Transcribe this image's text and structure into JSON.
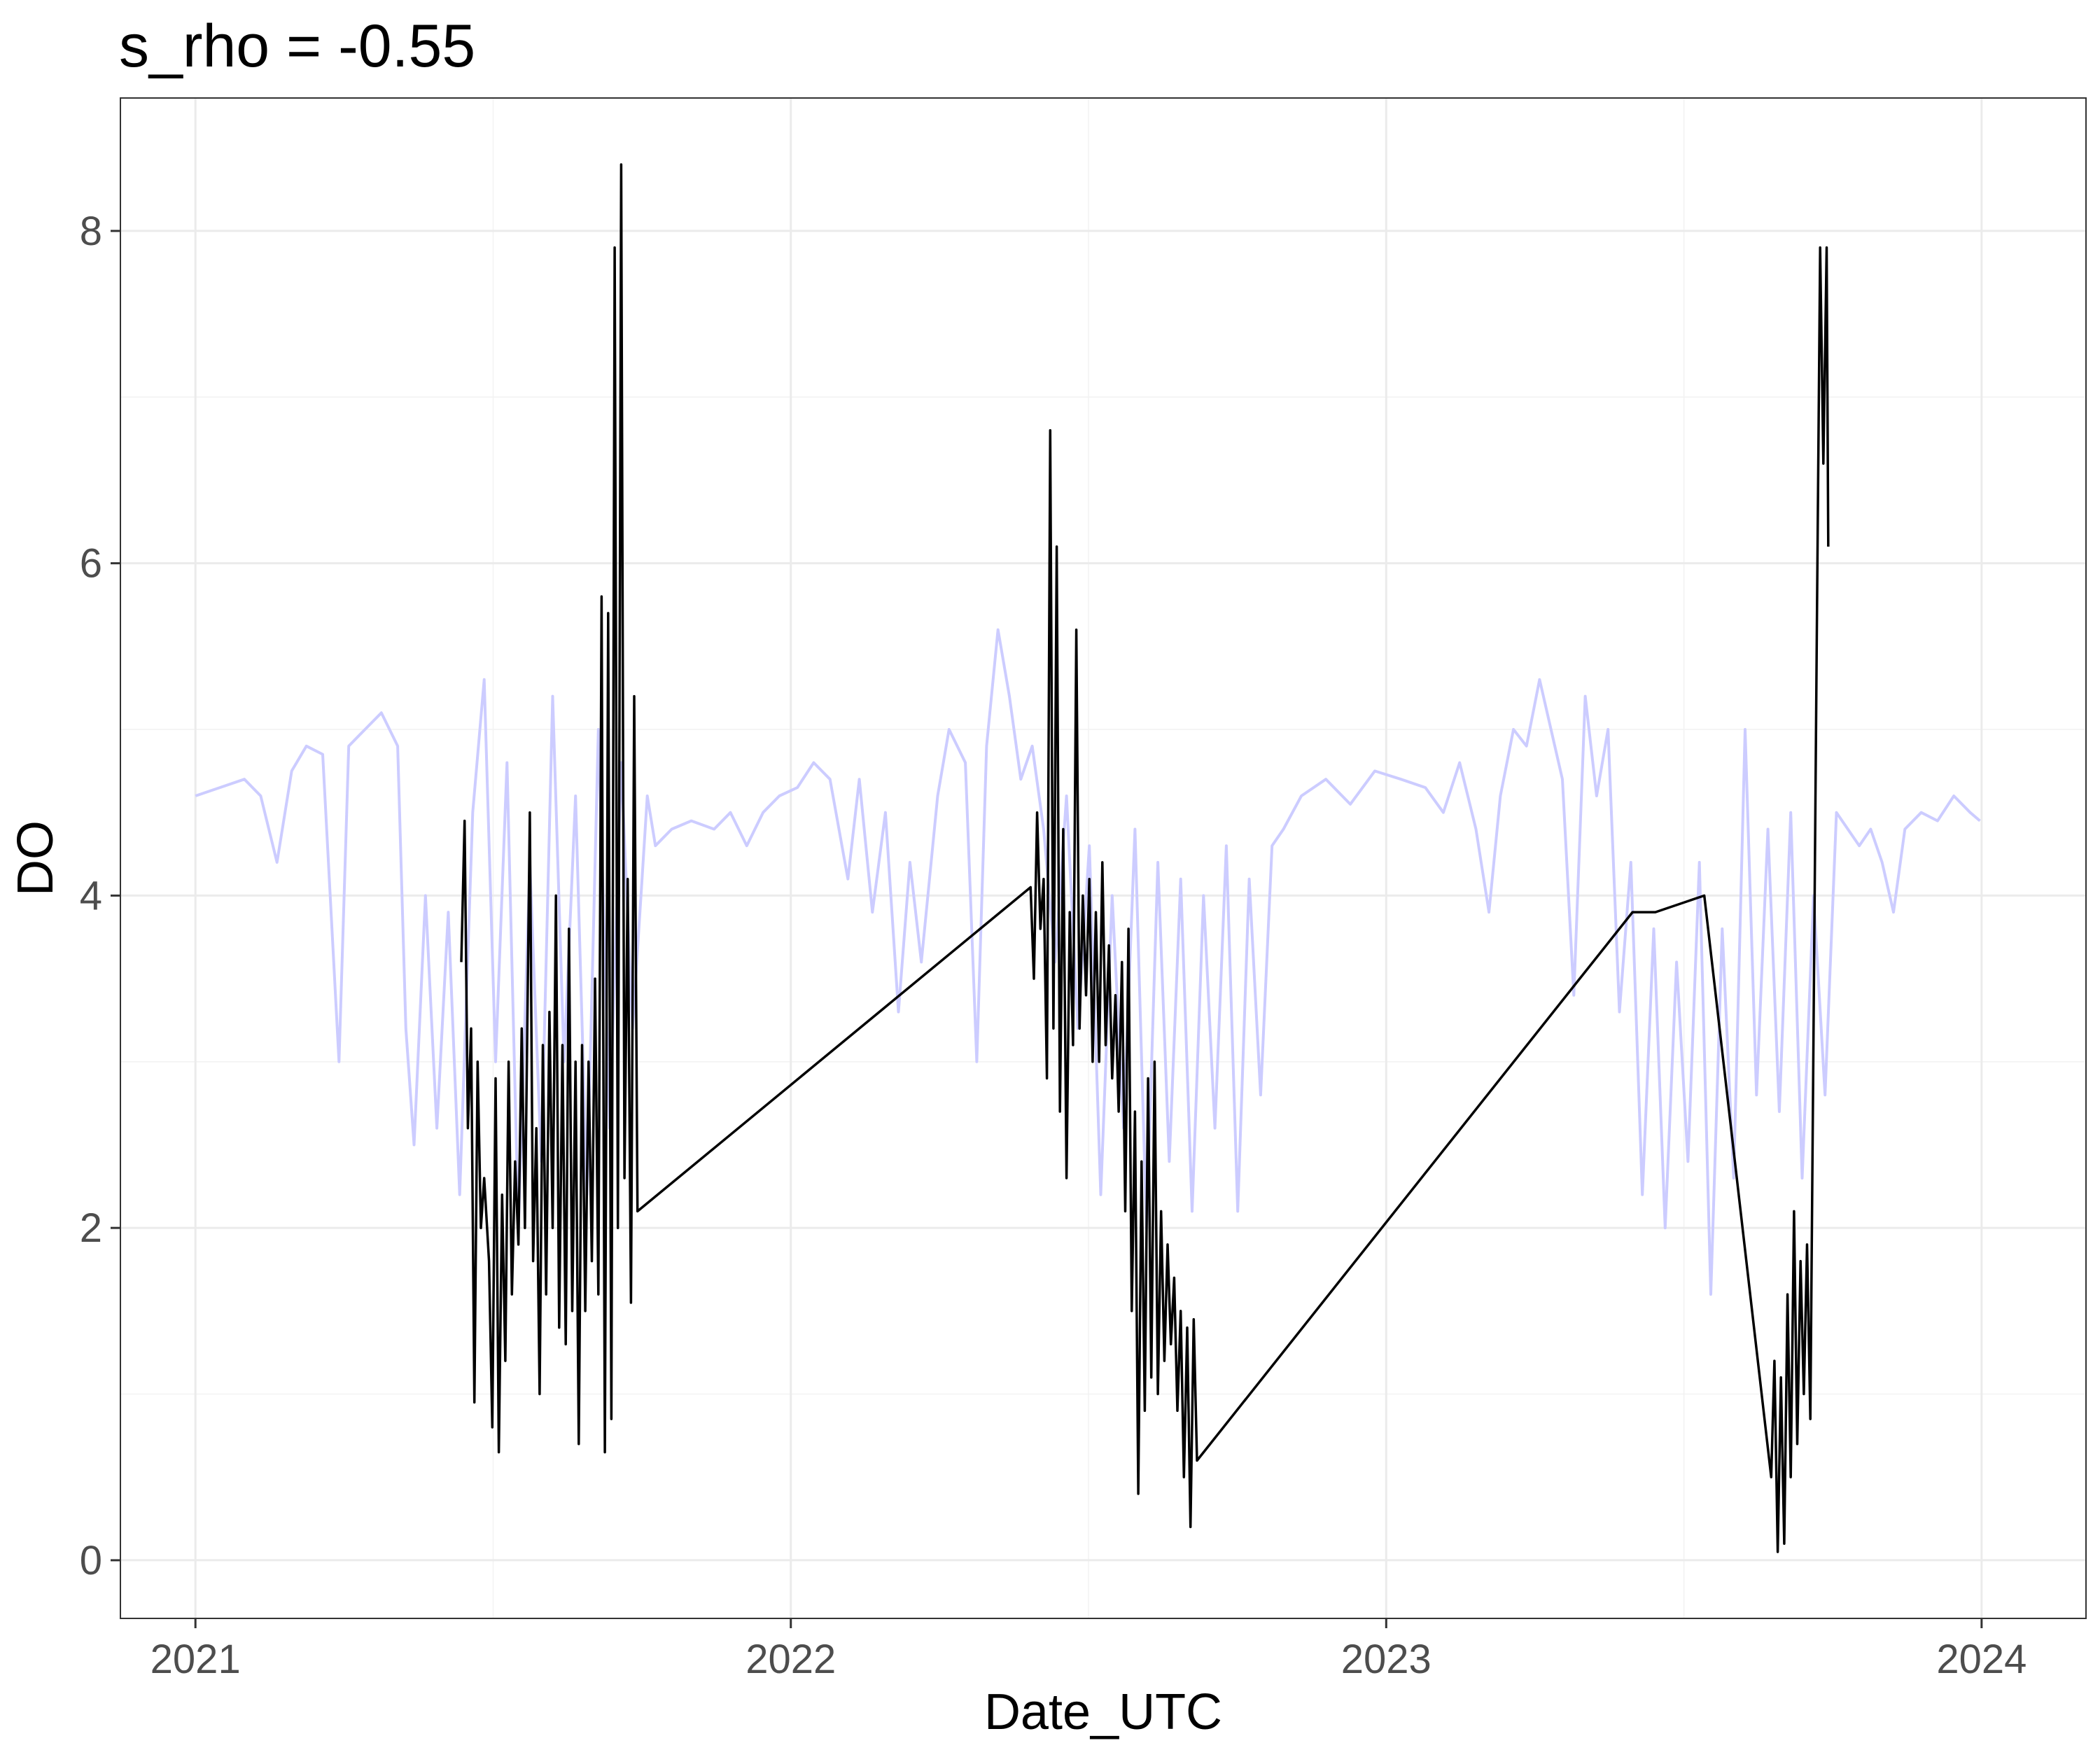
{
  "chart_data": {
    "type": "line",
    "title": "s_rho = -0.55",
    "xlabel": "Date_UTC",
    "ylabel": "DO",
    "xlim": [
      "2020-11-16",
      "2024-03-05"
    ],
    "ylim": [
      -0.35,
      8.8
    ],
    "x_ticks": [
      "2021-01-01",
      "2022-01-01",
      "2023-01-01",
      "2024-01-01"
    ],
    "x_tick_labels": [
      "2021",
      "2022",
      "2023",
      "2024"
    ],
    "y_ticks": [
      0,
      2,
      4,
      6,
      8
    ],
    "y_tick_labels": [
      "0",
      "2",
      "4",
      "6",
      "8"
    ],
    "grid": true,
    "legend": "none",
    "series": [
      {
        "color": "#ccccff",
        "points": [
          [
            "2021-01-01",
            4.6
          ],
          [
            "2021-01-16",
            4.65
          ],
          [
            "2021-01-31",
            4.7
          ],
          [
            "2021-02-10",
            4.6
          ],
          [
            "2021-02-20",
            4.2
          ],
          [
            "2021-03-01",
            4.75
          ],
          [
            "2021-03-10",
            4.9
          ],
          [
            "2021-03-20",
            4.85
          ],
          [
            "2021-03-30",
            3.0
          ],
          [
            "2021-04-05",
            4.9
          ],
          [
            "2021-04-15",
            5.0
          ],
          [
            "2021-04-25",
            5.1
          ],
          [
            "2021-05-05",
            4.9
          ],
          [
            "2021-05-10",
            3.2
          ],
          [
            "2021-05-15",
            2.5
          ],
          [
            "2021-05-22",
            4.0
          ],
          [
            "2021-05-29",
            2.6
          ],
          [
            "2021-06-05",
            3.9
          ],
          [
            "2021-06-12",
            2.2
          ],
          [
            "2021-06-20",
            4.5
          ],
          [
            "2021-06-27",
            5.3
          ],
          [
            "2021-07-04",
            3.0
          ],
          [
            "2021-07-11",
            4.8
          ],
          [
            "2021-07-18",
            2.0
          ],
          [
            "2021-07-25",
            4.2
          ],
          [
            "2021-08-01",
            2.4
          ],
          [
            "2021-08-08",
            5.2
          ],
          [
            "2021-08-15",
            3.0
          ],
          [
            "2021-08-22",
            4.6
          ],
          [
            "2021-08-29",
            2.2
          ],
          [
            "2021-09-05",
            5.0
          ],
          [
            "2021-09-12",
            2.6
          ],
          [
            "2021-09-19",
            4.8
          ],
          [
            "2021-09-26",
            3.2
          ],
          [
            "2021-10-05",
            4.6
          ],
          [
            "2021-10-10",
            4.3
          ],
          [
            "2021-10-20",
            4.4
          ],
          [
            "2021-11-01",
            4.45
          ],
          [
            "2021-11-15",
            4.4
          ],
          [
            "2021-11-25",
            4.5
          ],
          [
            "2021-12-05",
            4.3
          ],
          [
            "2021-12-15",
            4.5
          ],
          [
            "2021-12-25",
            4.6
          ],
          [
            "2022-01-05",
            4.65
          ],
          [
            "2022-01-15",
            4.8
          ],
          [
            "2022-01-25",
            4.7
          ],
          [
            "2022-02-05",
            4.1
          ],
          [
            "2022-02-12",
            4.7
          ],
          [
            "2022-02-20",
            3.9
          ],
          [
            "2022-02-28",
            4.5
          ],
          [
            "2022-03-08",
            3.3
          ],
          [
            "2022-03-15",
            4.2
          ],
          [
            "2022-03-22",
            3.6
          ],
          [
            "2022-04-01",
            4.6
          ],
          [
            "2022-04-08",
            5.0
          ],
          [
            "2022-04-18",
            4.8
          ],
          [
            "2022-04-25",
            3.0
          ],
          [
            "2022-05-01",
            4.9
          ],
          [
            "2022-05-08",
            5.6
          ],
          [
            "2022-05-15",
            5.2
          ],
          [
            "2022-05-22",
            4.7
          ],
          [
            "2022-05-29",
            4.9
          ],
          [
            "2022-06-05",
            4.4
          ],
          [
            "2022-06-12",
            3.6
          ],
          [
            "2022-06-19",
            4.6
          ],
          [
            "2022-06-26",
            3.2
          ],
          [
            "2022-07-03",
            4.3
          ],
          [
            "2022-07-10",
            2.2
          ],
          [
            "2022-07-17",
            4.0
          ],
          [
            "2022-07-24",
            2.6
          ],
          [
            "2022-07-31",
            4.4
          ],
          [
            "2022-08-07",
            2.0
          ],
          [
            "2022-08-14",
            4.2
          ],
          [
            "2022-08-21",
            2.4
          ],
          [
            "2022-08-28",
            4.1
          ],
          [
            "2022-09-04",
            2.1
          ],
          [
            "2022-09-11",
            4.0
          ],
          [
            "2022-09-18",
            2.6
          ],
          [
            "2022-09-25",
            4.3
          ],
          [
            "2022-10-02",
            2.1
          ],
          [
            "2022-10-09",
            4.1
          ],
          [
            "2022-10-16",
            2.8
          ],
          [
            "2022-10-23",
            4.3
          ],
          [
            "2022-10-30",
            4.4
          ],
          [
            "2022-11-10",
            4.6
          ],
          [
            "2022-11-25",
            4.7
          ],
          [
            "2022-12-10",
            4.55
          ],
          [
            "2022-12-25",
            4.75
          ],
          [
            "2023-01-10",
            4.7
          ],
          [
            "2023-01-25",
            4.65
          ],
          [
            "2023-02-05",
            4.5
          ],
          [
            "2023-02-15",
            4.8
          ],
          [
            "2023-02-25",
            4.4
          ],
          [
            "2023-03-05",
            3.9
          ],
          [
            "2023-03-12",
            4.6
          ],
          [
            "2023-03-20",
            5.0
          ],
          [
            "2023-03-28",
            4.9
          ],
          [
            "2023-04-05",
            5.3
          ],
          [
            "2023-04-12",
            5.0
          ],
          [
            "2023-04-19",
            4.7
          ],
          [
            "2023-04-26",
            3.4
          ],
          [
            "2023-05-03",
            5.2
          ],
          [
            "2023-05-10",
            4.6
          ],
          [
            "2023-05-17",
            5.0
          ],
          [
            "2023-05-24",
            3.3
          ],
          [
            "2023-05-31",
            4.2
          ],
          [
            "2023-06-07",
            2.2
          ],
          [
            "2023-06-14",
            3.8
          ],
          [
            "2023-06-21",
            2.0
          ],
          [
            "2023-06-28",
            3.6
          ],
          [
            "2023-07-05",
            2.4
          ],
          [
            "2023-07-12",
            4.2
          ],
          [
            "2023-07-19",
            1.6
          ],
          [
            "2023-07-26",
            3.8
          ],
          [
            "2023-08-02",
            2.3
          ],
          [
            "2023-08-09",
            5.0
          ],
          [
            "2023-08-16",
            2.8
          ],
          [
            "2023-08-23",
            4.4
          ],
          [
            "2023-08-30",
            2.7
          ],
          [
            "2023-09-06",
            4.5
          ],
          [
            "2023-09-13",
            2.3
          ],
          [
            "2023-09-20",
            4.0
          ],
          [
            "2023-09-27",
            2.8
          ],
          [
            "2023-10-04",
            4.5
          ],
          [
            "2023-10-11",
            4.4
          ],
          [
            "2023-10-18",
            4.3
          ],
          [
            "2023-10-25",
            4.4
          ],
          [
            "2023-11-01",
            4.2
          ],
          [
            "2023-11-08",
            3.9
          ],
          [
            "2023-11-15",
            4.4
          ],
          [
            "2023-11-25",
            4.5
          ],
          [
            "2023-12-05",
            4.45
          ],
          [
            "2023-12-15",
            4.6
          ],
          [
            "2023-12-25",
            4.5
          ],
          [
            "2023-12-31",
            4.45
          ]
        ]
      },
      {
        "color": "#000000",
        "points": [
          [
            "2021-06-13",
            3.6
          ],
          [
            "2021-06-15",
            4.45
          ],
          [
            "2021-06-17",
            2.6
          ],
          [
            "2021-06-19",
            3.2
          ],
          [
            "2021-06-21",
            0.95
          ],
          [
            "2021-06-23",
            3.0
          ],
          [
            "2021-06-25",
            2.0
          ],
          [
            "2021-06-27",
            2.3
          ],
          [
            "2021-06-30",
            1.8
          ],
          [
            "2021-07-02",
            0.8
          ],
          [
            "2021-07-04",
            2.9
          ],
          [
            "2021-07-06",
            0.65
          ],
          [
            "2021-07-08",
            2.2
          ],
          [
            "2021-07-10",
            1.2
          ],
          [
            "2021-07-12",
            3.0
          ],
          [
            "2021-07-14",
            1.6
          ],
          [
            "2021-07-16",
            2.4
          ],
          [
            "2021-07-18",
            1.9
          ],
          [
            "2021-07-20",
            3.2
          ],
          [
            "2021-07-22",
            2.0
          ],
          [
            "2021-07-25",
            4.5
          ],
          [
            "2021-07-27",
            1.8
          ],
          [
            "2021-07-29",
            2.6
          ],
          [
            "2021-07-31",
            1.0
          ],
          [
            "2021-08-02",
            3.1
          ],
          [
            "2021-08-04",
            1.6
          ],
          [
            "2021-08-06",
            3.3
          ],
          [
            "2021-08-08",
            2.0
          ],
          [
            "2021-08-10",
            4.0
          ],
          [
            "2021-08-12",
            1.4
          ],
          [
            "2021-08-14",
            3.1
          ],
          [
            "2021-08-16",
            1.3
          ],
          [
            "2021-08-18",
            3.8
          ],
          [
            "2021-08-20",
            1.5
          ],
          [
            "2021-08-22",
            3.0
          ],
          [
            "2021-08-24",
            0.7
          ],
          [
            "2021-08-26",
            3.1
          ],
          [
            "2021-08-28",
            1.5
          ],
          [
            "2021-08-30",
            3.0
          ],
          [
            "2021-09-01",
            1.8
          ],
          [
            "2021-09-03",
            3.5
          ],
          [
            "2021-09-05",
            1.6
          ],
          [
            "2021-09-07",
            5.8
          ],
          [
            "2021-09-09",
            0.65
          ],
          [
            "2021-09-11",
            5.7
          ],
          [
            "2021-09-13",
            0.85
          ],
          [
            "2021-09-15",
            7.9
          ],
          [
            "2021-09-17",
            2.0
          ],
          [
            "2021-09-19",
            8.4
          ],
          [
            "2021-09-21",
            2.3
          ],
          [
            "2021-09-23",
            4.1
          ],
          [
            "2021-09-25",
            1.55
          ],
          [
            "2021-09-27",
            5.2
          ],
          [
            "2021-09-29",
            2.1
          ],
          [
            "2022-05-28",
            4.05
          ],
          [
            "2022-05-30",
            3.5
          ],
          [
            "2022-06-01",
            4.5
          ],
          [
            "2022-06-03",
            3.8
          ],
          [
            "2022-06-05",
            4.1
          ],
          [
            "2022-06-07",
            2.9
          ],
          [
            "2022-06-09",
            6.8
          ],
          [
            "2022-06-11",
            3.2
          ],
          [
            "2022-06-13",
            6.1
          ],
          [
            "2022-06-15",
            2.7
          ],
          [
            "2022-06-17",
            4.4
          ],
          [
            "2022-06-19",
            2.3
          ],
          [
            "2022-06-21",
            3.9
          ],
          [
            "2022-06-23",
            3.1
          ],
          [
            "2022-06-25",
            5.6
          ],
          [
            "2022-06-27",
            3.2
          ],
          [
            "2022-06-29",
            4.0
          ],
          [
            "2022-07-01",
            3.4
          ],
          [
            "2022-07-03",
            4.1
          ],
          [
            "2022-07-05",
            3.0
          ],
          [
            "2022-07-07",
            3.9
          ],
          [
            "2022-07-09",
            3.0
          ],
          [
            "2022-07-11",
            4.2
          ],
          [
            "2022-07-13",
            3.1
          ],
          [
            "2022-07-15",
            3.7
          ],
          [
            "2022-07-17",
            2.9
          ],
          [
            "2022-07-19",
            3.4
          ],
          [
            "2022-07-21",
            2.7
          ],
          [
            "2022-07-23",
            3.6
          ],
          [
            "2022-07-25",
            2.1
          ],
          [
            "2022-07-27",
            3.8
          ],
          [
            "2022-07-29",
            1.5
          ],
          [
            "2022-07-31",
            2.7
          ],
          [
            "2022-08-02",
            0.4
          ],
          [
            "2022-08-04",
            2.4
          ],
          [
            "2022-08-06",
            0.9
          ],
          [
            "2022-08-08",
            2.9
          ],
          [
            "2022-08-10",
            1.1
          ],
          [
            "2022-08-12",
            3.0
          ],
          [
            "2022-08-14",
            1.0
          ],
          [
            "2022-08-16",
            2.1
          ],
          [
            "2022-08-18",
            1.2
          ],
          [
            "2022-08-20",
            1.9
          ],
          [
            "2022-08-22",
            1.3
          ],
          [
            "2022-08-24",
            1.7
          ],
          [
            "2022-08-26",
            0.9
          ],
          [
            "2022-08-28",
            1.5
          ],
          [
            "2022-08-30",
            0.5
          ],
          [
            "2022-09-01",
            1.4
          ],
          [
            "2022-09-03",
            0.2
          ],
          [
            "2022-09-05",
            1.45
          ],
          [
            "2022-09-07",
            0.6
          ],
          [
            "2023-06-01",
            3.9
          ],
          [
            "2023-06-15",
            3.9
          ],
          [
            "2023-07-15",
            4.0
          ],
          [
            "2023-08-25",
            0.5
          ],
          [
            "2023-08-27",
            1.2
          ],
          [
            "2023-08-29",
            0.05
          ],
          [
            "2023-08-31",
            1.1
          ],
          [
            "2023-09-02",
            0.1
          ],
          [
            "2023-09-04",
            1.6
          ],
          [
            "2023-09-06",
            0.5
          ],
          [
            "2023-09-08",
            2.1
          ],
          [
            "2023-09-10",
            0.7
          ],
          [
            "2023-09-12",
            1.8
          ],
          [
            "2023-09-14",
            1.0
          ],
          [
            "2023-09-16",
            1.9
          ],
          [
            "2023-09-18",
            0.85
          ],
          [
            "2023-09-20",
            3.2
          ],
          [
            "2023-09-22",
            5.6
          ],
          [
            "2023-09-24",
            7.9
          ],
          [
            "2023-09-26",
            6.6
          ],
          [
            "2023-09-28",
            7.9
          ],
          [
            "2023-09-29",
            6.1
          ]
        ]
      }
    ]
  }
}
